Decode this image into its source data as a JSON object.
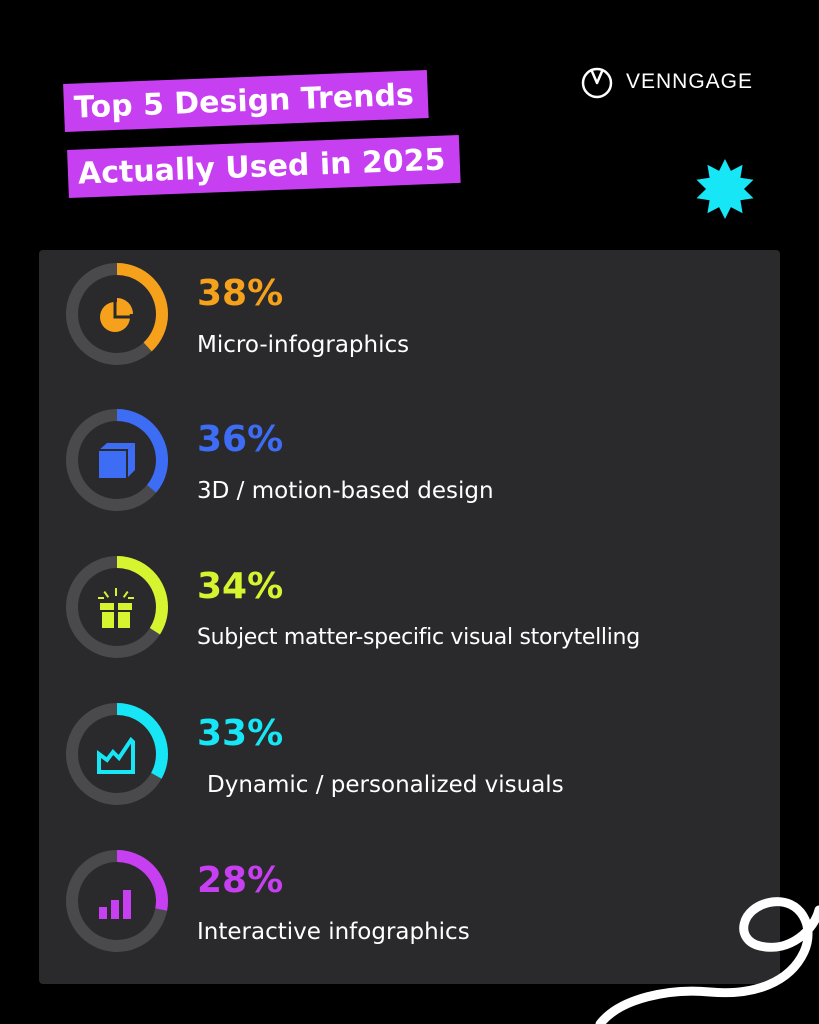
{
  "header": {
    "title_line1": "Top 5 Design Trends",
    "title_line2": "Actually Used in 2025",
    "title_bg_color": "#c63ff0",
    "brand": "VENNGAGE",
    "brand_icon": "clock-circle-icon",
    "decoration_icon": "starburst-icon",
    "decoration_color": "#16e6f5"
  },
  "chart_data": {
    "type": "donut-list",
    "title": "Top 5 Design Trends Actually Used in 2025",
    "track_color": "#4a494c",
    "items": [
      {
        "label": "Micro-infographics",
        "value": 38,
        "display": "38%",
        "color": "#f5a11c",
        "icon": "pie-chart-icon"
      },
      {
        "label": "3D / motion-based design",
        "value": 36,
        "display": "36%",
        "color": "#3d6cf5",
        "icon": "cube-icon"
      },
      {
        "label": "Subject matter-specific visual storytelling",
        "value": 34,
        "display": "34%",
        "color": "#d6f530",
        "icon": "gift-box-icon"
      },
      {
        "label": "Dynamic / personalized visuals",
        "value": 33,
        "display": "33%",
        "color": "#16e6f5",
        "icon": "area-chart-icon"
      },
      {
        "label": "Interactive infographics",
        "value": 28,
        "display": "28%",
        "color": "#c63ff0",
        "icon": "bar-chart-icon"
      }
    ]
  }
}
